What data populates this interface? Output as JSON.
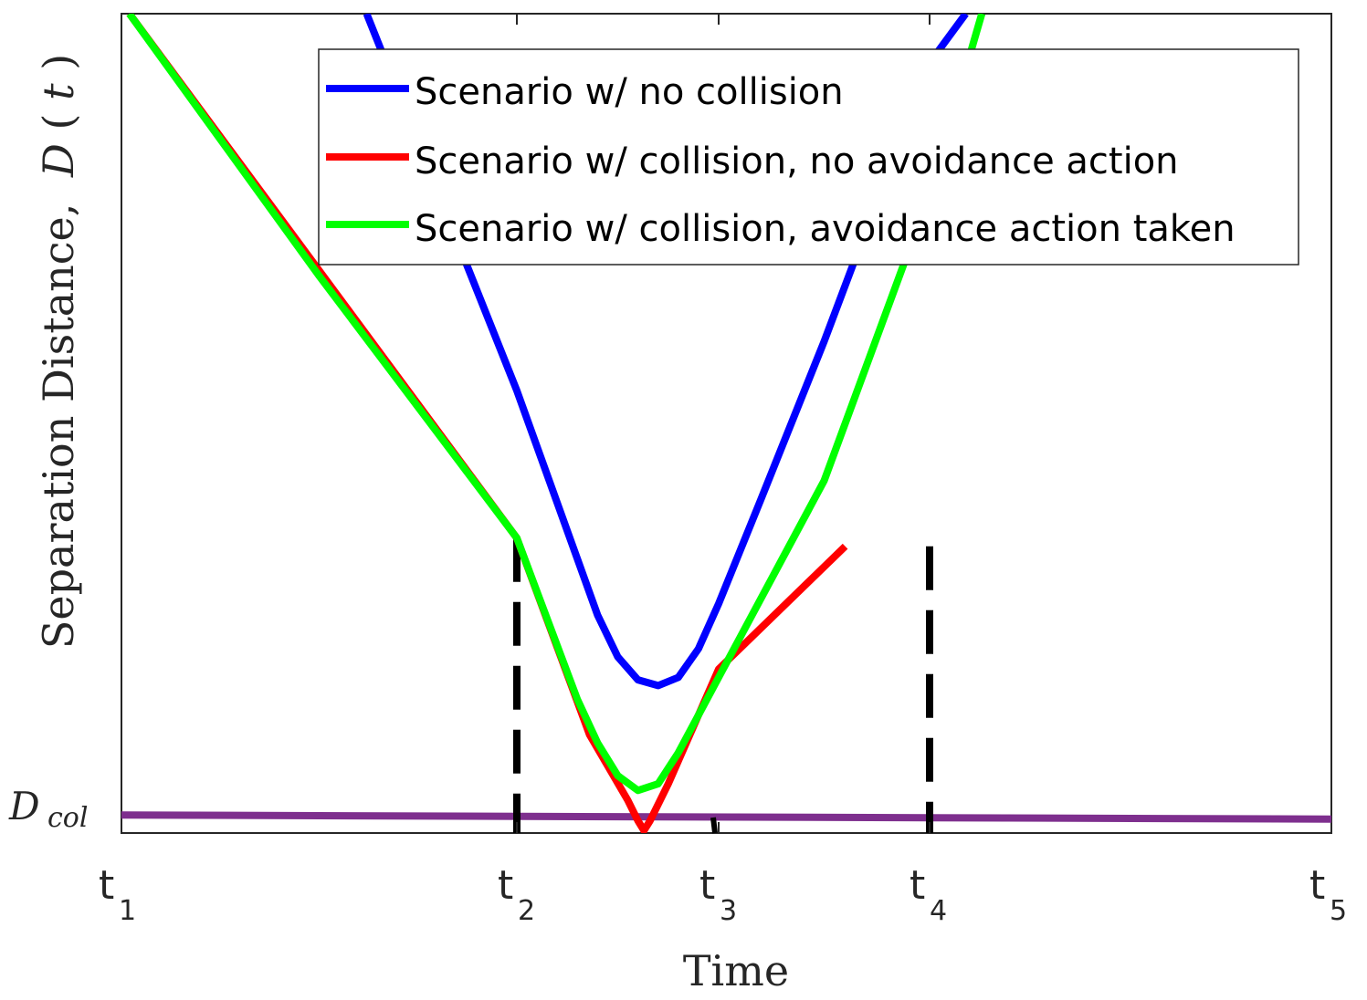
{
  "chart_data": {
    "type": "line",
    "title": "",
    "xlabel": "Time",
    "ylabel": "Separation Distance, D(t)",
    "ylabel_parts": {
      "text": "Separation Distance,",
      "math": "D",
      "paren_open": "(",
      "var": "t",
      "paren_close": ")"
    },
    "x_ticks": [
      {
        "base": "t",
        "sub": "1",
        "x": 1
      },
      {
        "base": "t",
        "sub": "2",
        "x": 2
      },
      {
        "base": "t",
        "sub": "3",
        "x": 3
      },
      {
        "base": "t",
        "sub": "4",
        "x": 4
      },
      {
        "base": "t",
        "sub": "5",
        "x": 5
      }
    ],
    "y_tick": {
      "base": "D",
      "sub": "col"
    },
    "xlim": [
      1,
      5
    ],
    "ylim": [
      0,
      1
    ],
    "dcol_level": {
      "start": 0.022,
      "end": 0.017,
      "color": "#7e2f8e"
    },
    "vlines": [
      {
        "x": 2.0,
        "top": 0.36,
        "color": "#000000"
      },
      {
        "x": 4.0,
        "top": 0.35,
        "color": "#000000"
      }
    ],
    "legend_position": "top-right",
    "series": [
      {
        "name": "Scenario w/ no collision",
        "color": "#0000ff",
        "points": [
          [
            1.62,
            1.0
          ],
          [
            2.0,
            0.54
          ],
          [
            2.4,
            0.266
          ],
          [
            2.5,
            0.215
          ],
          [
            2.6,
            0.187
          ],
          [
            2.7,
            0.18
          ],
          [
            2.8,
            0.19
          ],
          [
            2.9,
            0.225
          ],
          [
            3.0,
            0.28
          ],
          [
            3.2,
            0.407
          ],
          [
            3.5,
            0.6
          ],
          [
            3.88,
            0.86
          ],
          [
            4.0,
            0.94
          ],
          [
            4.09,
            1.0
          ]
        ]
      },
      {
        "name": "Scenario w/ collision, no avoidance action",
        "color": "#ff0000",
        "points": [
          [
            1.02,
            1.0
          ],
          [
            2.0,
            0.36
          ],
          [
            2.36,
            0.12
          ],
          [
            2.55,
            0.04
          ],
          [
            2.6,
            0.015
          ],
          [
            2.63,
            0.003
          ],
          [
            2.66,
            0.015
          ],
          [
            2.75,
            0.06
          ],
          [
            3.0,
            0.2
          ],
          [
            3.6,
            0.35
          ]
        ]
      },
      {
        "name": "Scenario w/ collision, avoidance action taken",
        "color": "#00ff00",
        "points": [
          [
            1.02,
            1.0
          ],
          [
            1.5,
            0.68
          ],
          [
            2.0,
            0.36
          ],
          [
            2.3,
            0.163
          ],
          [
            2.4,
            0.11
          ],
          [
            2.5,
            0.07
          ],
          [
            2.6,
            0.052
          ],
          [
            2.7,
            0.06
          ],
          [
            2.8,
            0.098
          ],
          [
            3.0,
            0.19
          ],
          [
            3.5,
            0.43
          ],
          [
            4.0,
            0.78
          ],
          [
            4.13,
            1.0
          ]
        ]
      }
    ]
  }
}
